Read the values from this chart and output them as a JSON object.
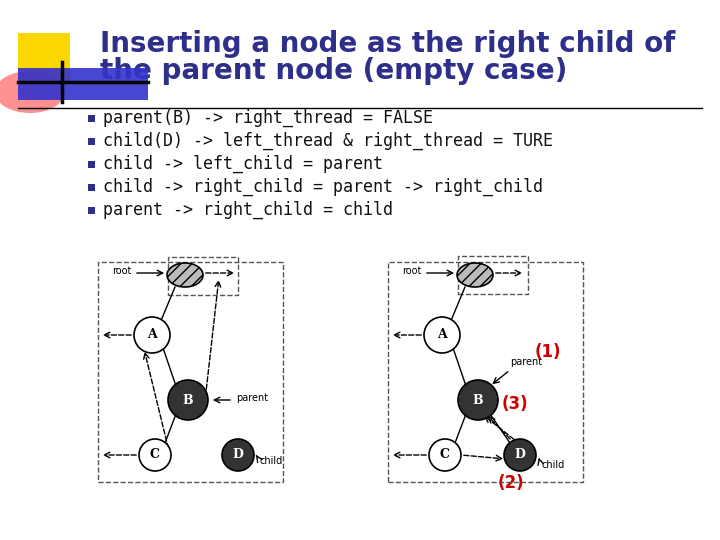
{
  "title_line1": "Inserting a node as the right child of",
  "title_line2": "the parent node (empty case)",
  "title_color": "#2E2E8B",
  "title_fontsize": 20,
  "bg_color": "#FFFFFF",
  "bullet_color": "#2E2E8B",
  "bullet_items": [
    "parent(B) -> right_thread = FALSE",
    "child(D) -> left_thread & right_thread = TURE",
    "child -> left_child = parent",
    "child -> right_child = parent -> right_child",
    "parent -> right_child = child"
  ],
  "bullet_fontsize": 12,
  "accent_yellow": "#FFD700",
  "accent_red": "#FF5555",
  "accent_blue": "#3333CC",
  "label_color_red": "#CC0000",
  "bg_color_slide": "#FFFFFF"
}
